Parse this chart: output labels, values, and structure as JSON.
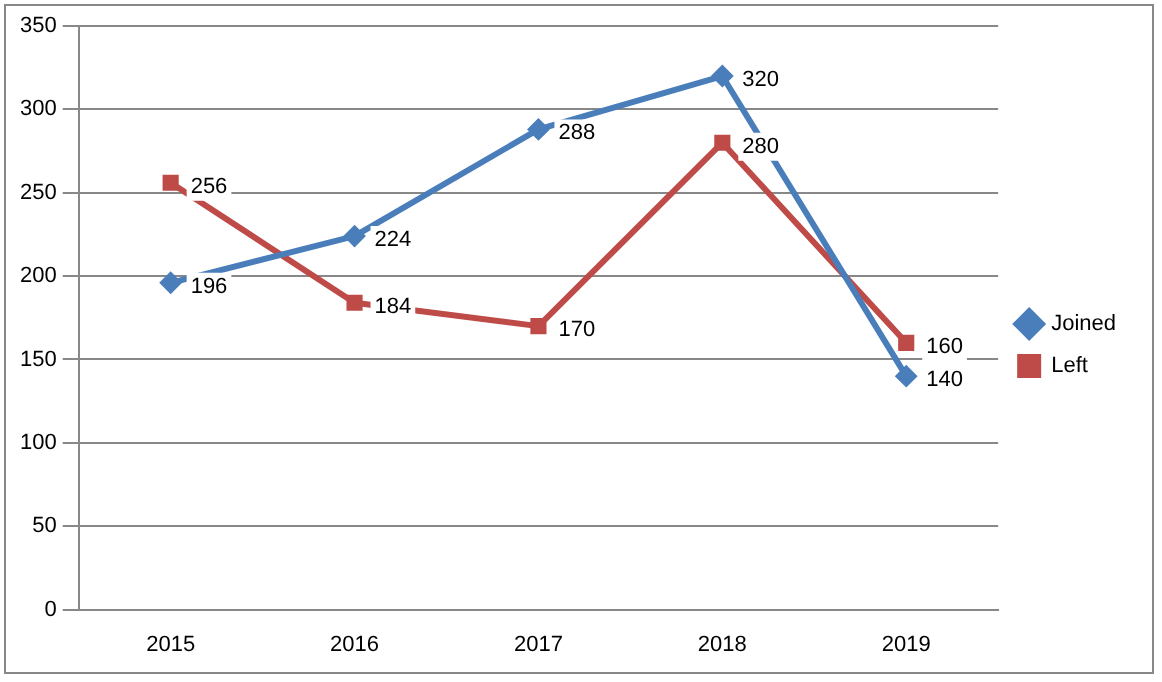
{
  "chart_data": {
    "type": "line",
    "categories": [
      "2015",
      "2016",
      "2017",
      "2018",
      "2019"
    ],
    "series": [
      {
        "name": "Joined",
        "color": "#4a7ebb",
        "values": [
          196,
          224,
          288,
          320,
          140
        ],
        "marker": "diamond"
      },
      {
        "name": "Left",
        "color": "#be4b48",
        "values": [
          256,
          184,
          170,
          280,
          160
        ],
        "marker": "square"
      }
    ],
    "ylim": [
      0,
      350
    ],
    "yticks": [
      0,
      50,
      100,
      150,
      200,
      250,
      300,
      350
    ],
    "grid": "y",
    "legend": "right",
    "data_labels": true,
    "line_style": "solid"
  }
}
